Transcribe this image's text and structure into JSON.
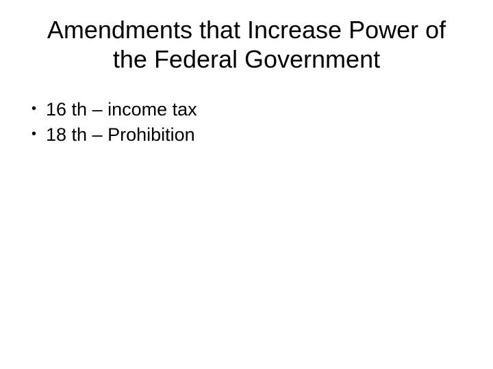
{
  "slide": {
    "title": "Amendments that Increase Power of the Federal Government",
    "bullets": [
      {
        "text": "16 th – income tax"
      },
      {
        "text": "18 th – Prohibition"
      }
    ],
    "colors": {
      "background": "#ffffff",
      "text": "#000000"
    },
    "typography": {
      "title_fontsize": 36,
      "title_weight": 400,
      "bullet_fontsize": 27,
      "font_family": "Arial"
    }
  }
}
